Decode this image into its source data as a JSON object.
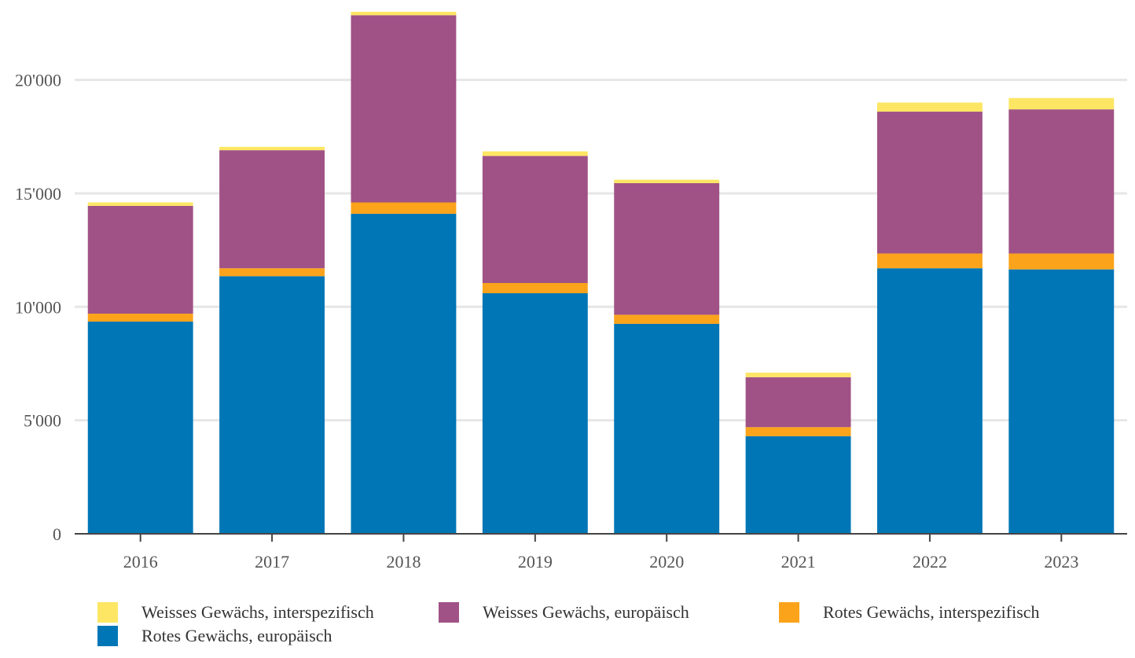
{
  "chart_data": {
    "type": "bar",
    "stacked": true,
    "categories": [
      "2016",
      "2017",
      "2018",
      "2019",
      "2020",
      "2021",
      "2022",
      "2023"
    ],
    "series": [
      {
        "name": "Rotes Gewächs, europäisch",
        "color": "#0076b6",
        "values": [
          9350,
          11350,
          14100,
          10600,
          9250,
          4300,
          11700,
          11650
        ]
      },
      {
        "name": "Rotes Gewächs, interspezifisch",
        "color": "#faa31b",
        "values": [
          350,
          350,
          500,
          450,
          400,
          400,
          650,
          700
        ]
      },
      {
        "name": "Weisses Gewächs, europäisch",
        "color": "#a05286",
        "values": [
          4750,
          5200,
          8250,
          5600,
          5800,
          2200,
          6250,
          6350
        ]
      },
      {
        "name": "Weisses Gewächs, interspezifisch",
        "color": "#fde664",
        "values": [
          150,
          150,
          150,
          200,
          150,
          200,
          400,
          500
        ]
      }
    ],
    "ylim": [
      0,
      23000
    ],
    "yticks": [
      0,
      5000,
      10000,
      15000,
      20000
    ],
    "ytick_labels": [
      "0",
      "5'000",
      "10'000",
      "15'000",
      "20'000"
    ],
    "grid": true,
    "legend_position": "bottom",
    "legend_order": [
      3,
      2,
      1,
      0
    ]
  }
}
